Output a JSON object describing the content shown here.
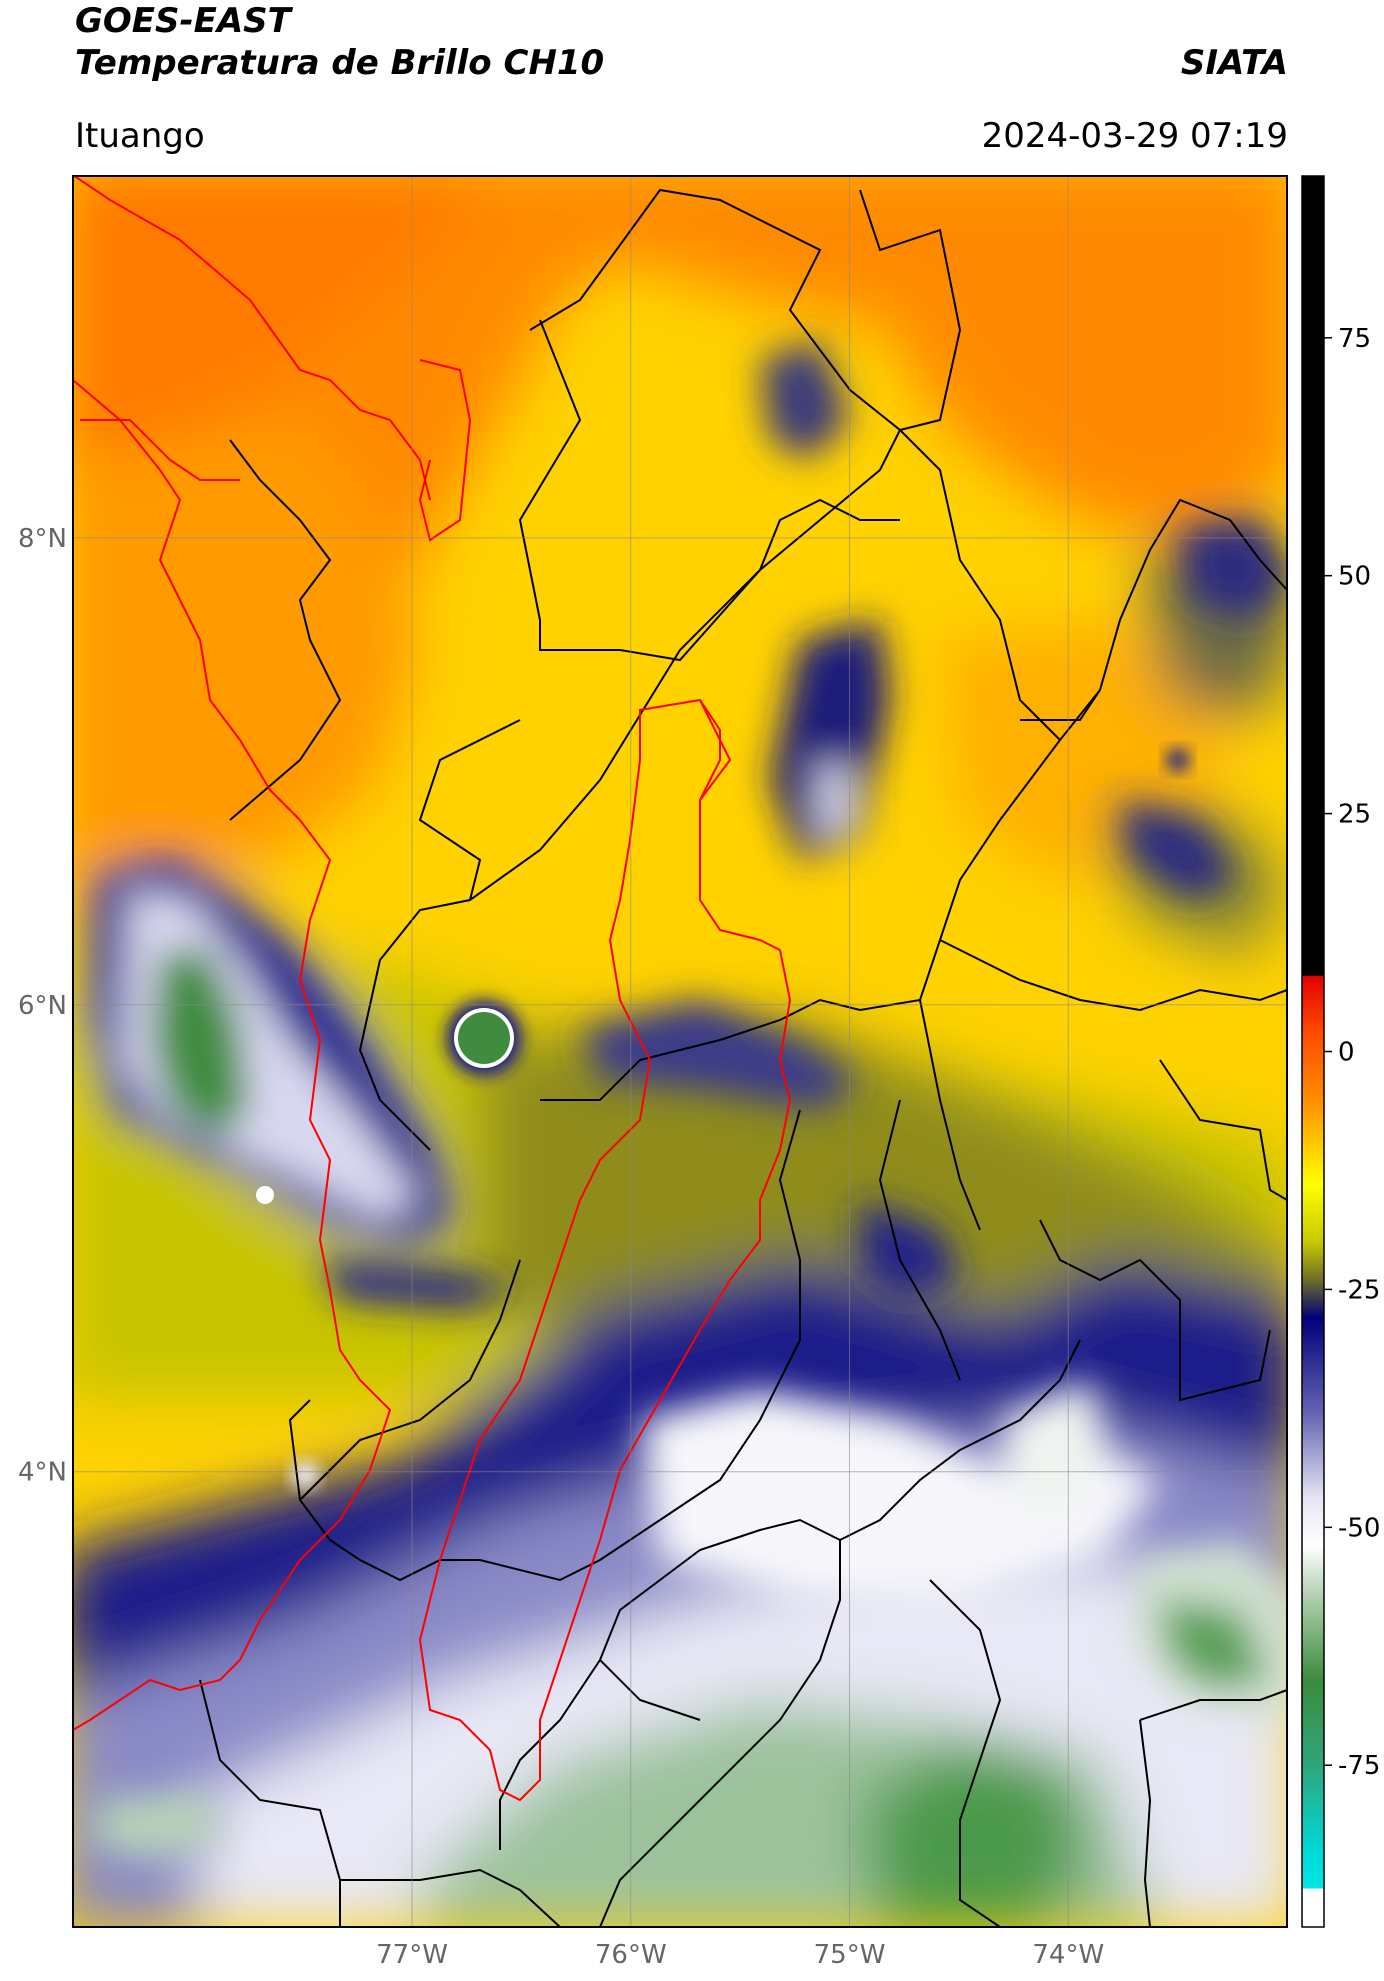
{
  "header": {
    "title_line1": "GOES-EAST",
    "title_line2": "Temperatura de Brillo CH10",
    "brand": "SIATA",
    "region": "Ituango",
    "datetime": "2024-03-29 07:19"
  },
  "map": {
    "lat_ticks": [
      {
        "value": 8,
        "label": "8°N"
      },
      {
        "value": 6,
        "label": "6°N"
      },
      {
        "value": 4,
        "label": "4°N"
      }
    ],
    "lon_ticks": [
      {
        "value": -77,
        "label": "77°W"
      },
      {
        "value": -76,
        "label": "76°W"
      },
      {
        "value": -75,
        "label": "75°W"
      },
      {
        "value": -74,
        "label": "74°W"
      }
    ],
    "lon_range": [
      -78.55,
      -73.0
    ],
    "lat_range": [
      2.05,
      9.55
    ]
  },
  "colorbar": {
    "range": [
      -92,
      92
    ],
    "ticks": [
      {
        "value": 75,
        "label": "75"
      },
      {
        "value": 50,
        "label": "50"
      },
      {
        "value": 25,
        "label": "25"
      },
      {
        "value": 0,
        "label": "0"
      },
      {
        "value": -25,
        "label": "-25"
      },
      {
        "value": -50,
        "label": "-50"
      },
      {
        "value": -75,
        "label": "-75"
      }
    ],
    "stops": [
      {
        "value": 92,
        "color": "#000000"
      },
      {
        "value": 8,
        "color": "#000000"
      },
      {
        "value": 7.9,
        "color": "#e40000"
      },
      {
        "value": 2,
        "color": "#ff4a00"
      },
      {
        "value": -5,
        "color": "#ff8c00"
      },
      {
        "value": -14,
        "color": "#ffff00"
      },
      {
        "value": -20,
        "color": "#c8c800"
      },
      {
        "value": -24,
        "color": "#6e6e2a"
      },
      {
        "value": -28,
        "color": "#00007a"
      },
      {
        "value": -38,
        "color": "#6464b4"
      },
      {
        "value": -47,
        "color": "#e6e6f4"
      },
      {
        "value": -52,
        "color": "#ffffff"
      },
      {
        "value": -57,
        "color": "#b4d2b4"
      },
      {
        "value": -66,
        "color": "#3c8c3c"
      },
      {
        "value": -75,
        "color": "#2fa57c"
      },
      {
        "value": -84,
        "color": "#00d8d8"
      },
      {
        "value": -87.9,
        "color": "#00e5e5"
      },
      {
        "value": -88,
        "color": "#ffffff"
      },
      {
        "value": -92,
        "color": "#ffffff"
      }
    ]
  }
}
